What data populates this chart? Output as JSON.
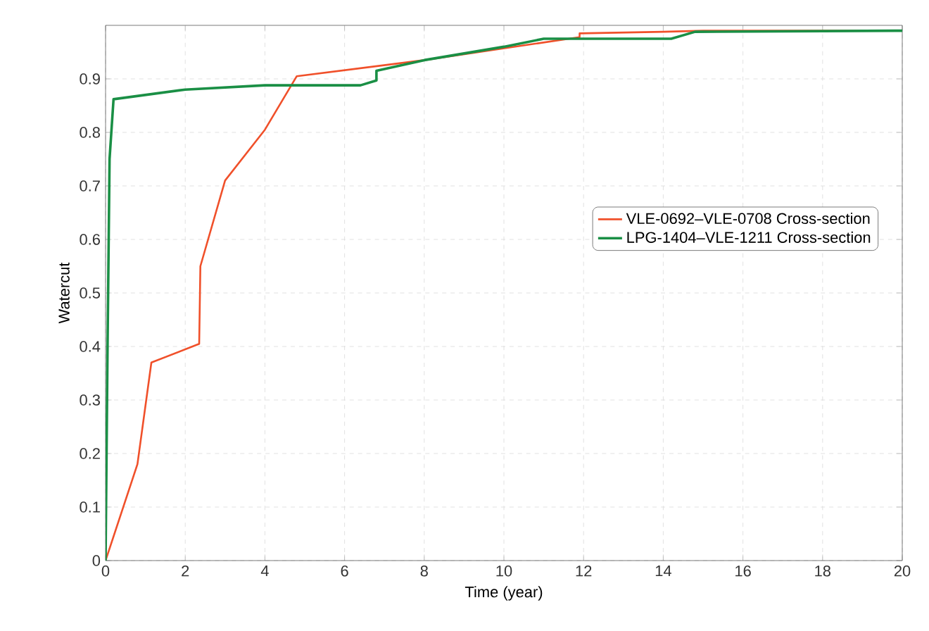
{
  "chart_data": {
    "type": "line",
    "xlabel": "Time (year)",
    "ylabel": "Watercut",
    "xlim": [
      0,
      20
    ],
    "ylim": [
      0,
      1
    ],
    "xticks": [
      0,
      2,
      4,
      6,
      8,
      10,
      12,
      14,
      16,
      18,
      20
    ],
    "yticks": [
      0,
      0.1,
      0.2,
      0.3,
      0.4,
      0.5,
      0.6,
      0.7,
      0.8,
      0.9
    ],
    "grid": true,
    "legend": "right",
    "marker": "none",
    "line_style": "solid",
    "series": [
      {
        "name": "VLE-0692–VLE-0708 Cross-section",
        "color": "#f0502a",
        "x": [
          0,
          0.8,
          1.15,
          2.35,
          2.38,
          3,
          4,
          4.8,
          8,
          10,
          11.9,
          11.9,
          14,
          15,
          20
        ],
        "values": [
          0,
          0.18,
          0.37,
          0.405,
          0.55,
          0.71,
          0.805,
          0.905,
          0.935,
          null,
          0.978,
          0.985,
          0.988,
          0.99,
          0.99
        ]
      },
      {
        "name": "LPG-1404–VLE-1211 Cross-section",
        "color": "#1a8f45",
        "x": [
          0,
          0.05,
          0.1,
          0.2,
          2,
          4,
          6.4,
          6.8,
          6.8,
          8,
          10,
          11,
          14.2,
          14.8,
          20
        ],
        "values": [
          0,
          0.4,
          0.75,
          0.862,
          0.88,
          0.888,
          0.888,
          0.897,
          0.915,
          0.935,
          0.96,
          0.975,
          0.975,
          0.988,
          0.99
        ]
      }
    ]
  }
}
